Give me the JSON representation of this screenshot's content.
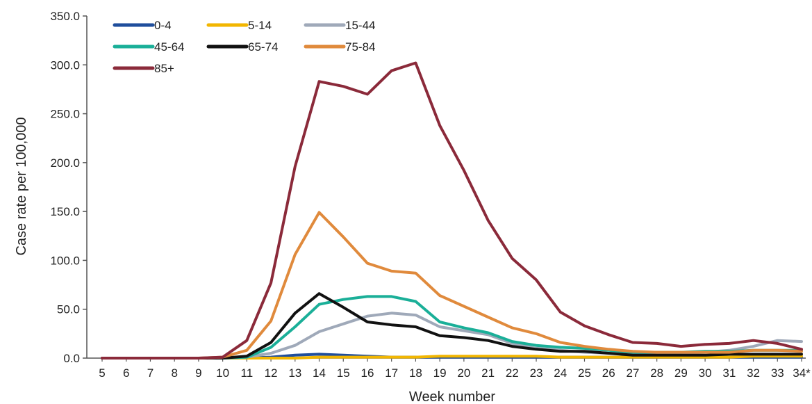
{
  "chart_data": {
    "type": "line",
    "xlabel": "Week number",
    "ylabel": "Case rate per 100,000",
    "ylim": [
      0,
      350
    ],
    "y_ticks": [
      "0.0",
      "50.0",
      "100.0",
      "150.0",
      "200.0",
      "250.0",
      "300.0",
      "350.0"
    ],
    "y_tick_values": [
      0,
      50,
      100,
      150,
      200,
      250,
      300,
      350
    ],
    "categories": [
      "5",
      "6",
      "7",
      "8",
      "9",
      "10",
      "11",
      "12",
      "13",
      "14",
      "15",
      "16",
      "17",
      "18",
      "19",
      "20",
      "21",
      "22",
      "23",
      "24",
      "25",
      "26",
      "27",
      "28",
      "29",
      "30",
      "31",
      "32",
      "33",
      "34*"
    ],
    "grid": false,
    "legend_position": "top-left",
    "series": [
      {
        "name": "0-4",
        "color": "#1f4e9c",
        "values": [
          0,
          0,
          0,
          0,
          0,
          0,
          0,
          1,
          3,
          4,
          3,
          2,
          1,
          1,
          1,
          1,
          1,
          1,
          1,
          1,
          1,
          1,
          1,
          1,
          1,
          1,
          1,
          1,
          1,
          1
        ]
      },
      {
        "name": "5-14",
        "color": "#f2b600",
        "values": [
          0,
          0,
          0,
          0,
          0,
          0,
          0,
          0,
          0,
          1,
          1,
          1,
          1,
          1,
          2,
          2,
          2,
          2,
          2,
          1,
          1,
          1,
          1,
          1,
          1,
          1,
          1,
          2,
          2,
          2
        ]
      },
      {
        "name": "15-44",
        "color": "#9fa9b9",
        "values": [
          0,
          0,
          0,
          0,
          0,
          0,
          1,
          5,
          13,
          27,
          35,
          43,
          46,
          44,
          32,
          28,
          24,
          15,
          10,
          8,
          6,
          5,
          4,
          5,
          5,
          6,
          8,
          12,
          18,
          17
        ]
      },
      {
        "name": "45-64",
        "color": "#1aaf98",
        "values": [
          0,
          0,
          0,
          0,
          0,
          0,
          1,
          11,
          32,
          55,
          60,
          63,
          63,
          58,
          37,
          31,
          26,
          17,
          13,
          11,
          10,
          8,
          6,
          6,
          6,
          7,
          7,
          8,
          8,
          8
        ]
      },
      {
        "name": "65-74",
        "color": "#111111",
        "values": [
          0,
          0,
          0,
          0,
          0,
          0,
          2,
          16,
          46,
          66,
          52,
          37,
          34,
          32,
          23,
          21,
          18,
          12,
          9,
          7,
          7,
          5,
          3,
          3,
          3,
          3,
          4,
          4,
          4,
          4
        ]
      },
      {
        "name": "75-84",
        "color": "#e08a3c",
        "values": [
          0,
          0,
          0,
          0,
          0,
          1,
          8,
          38,
          106,
          149,
          124,
          97,
          89,
          87,
          64,
          53,
          42,
          31,
          25,
          16,
          12,
          9,
          7,
          6,
          6,
          6,
          6,
          8,
          8,
          7
        ]
      },
      {
        "name": "85+",
        "color": "#8b2a3a",
        "values": [
          0,
          0,
          0,
          0,
          0,
          1,
          18,
          77,
          196,
          283,
          278,
          270,
          294,
          302,
          238,
          192,
          141,
          102,
          80,
          47,
          33,
          24,
          16,
          15,
          12,
          14,
          15,
          18,
          15,
          9
        ]
      }
    ]
  }
}
